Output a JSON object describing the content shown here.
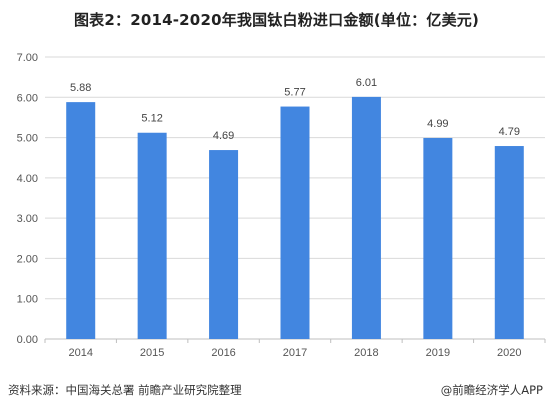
{
  "title": "图表2：2014-2020年我国钛白粉进口金额(单位：亿美元)",
  "source": "资料来源：中国海关总署 前瞻产业研究院整理",
  "brand": "@前瞻经济学人APP",
  "colors": {
    "bar": "#4286e0",
    "grid": "#d9d9d9",
    "axis": "#bfbfbf"
  },
  "chart_data": {
    "type": "bar",
    "title": "图表2：2014-2020年我国钛白粉进口金额(单位：亿美元)",
    "xlabel": "",
    "ylabel": "",
    "categories": [
      "2014",
      "2015",
      "2016",
      "2017",
      "2018",
      "2019",
      "2020"
    ],
    "values": [
      5.88,
      5.12,
      4.69,
      5.77,
      6.01,
      4.99,
      4.79
    ],
    "value_labels": [
      "5.88",
      "5.12",
      "4.69",
      "5.77",
      "6.01",
      "4.99",
      "4.79"
    ],
    "yticks": [
      "0.00",
      "1.00",
      "2.00",
      "3.00",
      "4.00",
      "5.00",
      "6.00",
      "7.00"
    ],
    "ylim": [
      0,
      7
    ],
    "grid": true,
    "legend": "none"
  }
}
